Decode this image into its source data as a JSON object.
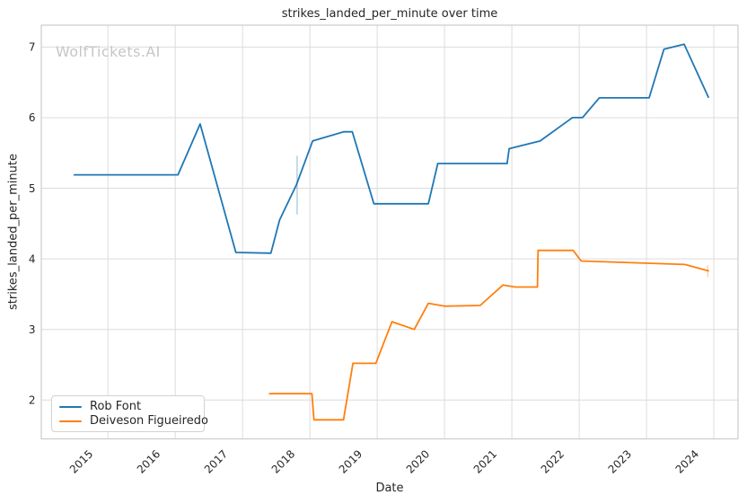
{
  "watermark": "WolfTickets.AI",
  "chart_data": {
    "type": "line",
    "title": "strikes_landed_per_minute over time",
    "xlabel": "Date",
    "ylabel": "strikes_landed_per_minute",
    "x_ticks": [
      2015,
      2016,
      2017,
      2018,
      2019,
      2020,
      2021,
      2022,
      2023,
      2024
    ],
    "y_ticks": [
      2,
      3,
      4,
      5,
      6,
      7
    ],
    "xlim": [
      2014.01,
      2024.36
    ],
    "ylim": [
      1.45,
      7.31
    ],
    "grid": true,
    "legend_position": "lower left",
    "series": [
      {
        "name": "Rob Font",
        "color": "#1f77b4",
        "points": [
          [
            2014.5,
            5.19
          ],
          [
            2016.04,
            5.19
          ],
          [
            2016.37,
            5.91
          ],
          [
            2016.9,
            4.09
          ],
          [
            2017.42,
            4.08
          ],
          [
            2017.55,
            4.55
          ],
          [
            2017.8,
            5.05
          ],
          [
            2018.04,
            5.67
          ],
          [
            2018.5,
            5.8
          ],
          [
            2018.63,
            5.8
          ],
          [
            2018.95,
            4.78
          ],
          [
            2019.76,
            4.78
          ],
          [
            2019.9,
            5.35
          ],
          [
            2020.93,
            5.35
          ],
          [
            2020.96,
            5.56
          ],
          [
            2021.42,
            5.67
          ],
          [
            2021.9,
            6.0
          ],
          [
            2022.05,
            6.0
          ],
          [
            2022.3,
            6.28
          ],
          [
            2023.04,
            6.28
          ],
          [
            2023.26,
            6.97
          ],
          [
            2023.56,
            7.04
          ],
          [
            2023.92,
            6.29
          ]
        ]
      },
      {
        "name": "Deiveson Figueiredo",
        "color": "#ff7f0e",
        "points": [
          [
            2017.4,
            2.09
          ],
          [
            2018.03,
            2.09
          ],
          [
            2018.06,
            1.72
          ],
          [
            2018.5,
            1.72
          ],
          [
            2018.64,
            2.52
          ],
          [
            2018.98,
            2.52
          ],
          [
            2019.22,
            3.11
          ],
          [
            2019.55,
            3.0
          ],
          [
            2019.76,
            3.37
          ],
          [
            2020.0,
            3.33
          ],
          [
            2020.53,
            3.34
          ],
          [
            2020.87,
            3.63
          ],
          [
            2021.05,
            3.6
          ],
          [
            2021.38,
            3.6
          ],
          [
            2021.39,
            4.12
          ],
          [
            2021.91,
            4.12
          ],
          [
            2022.03,
            3.97
          ],
          [
            2023.57,
            3.92
          ],
          [
            2023.92,
            3.83
          ]
        ]
      }
    ],
    "error_bars": [
      {
        "series": "Rob Font",
        "x": 2017.81,
        "y_low": 4.63,
        "y_high": 5.46,
        "color": "#1f77b4"
      },
      {
        "series": "Deiveson Figueiredo",
        "x": 2023.91,
        "y_low": 3.74,
        "y_high": 3.91,
        "color": "#ff7f0e"
      }
    ]
  },
  "colors": {
    "grid": "#dcdcdc",
    "border": "#cccccc",
    "text": "#262626",
    "watermark": "#c6c6c6",
    "background": "#ffffff"
  }
}
